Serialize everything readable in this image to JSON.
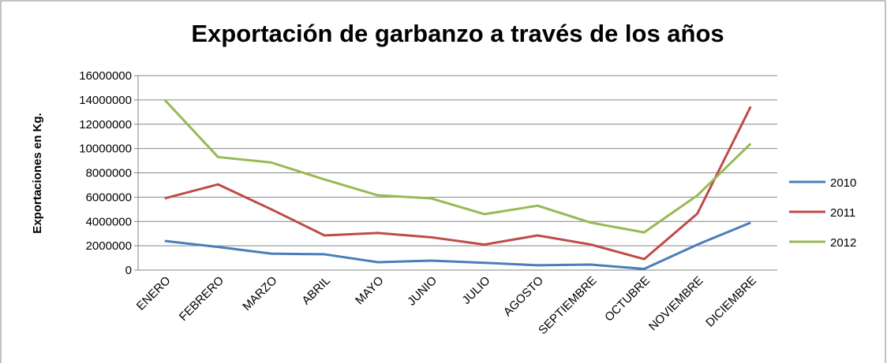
{
  "chart_data": {
    "type": "line",
    "title": "Exportación de garbanzo a través de los años",
    "y_label": "Exportaciones en Kg.",
    "categories": [
      "ENERO",
      "FEBRERO",
      "MARZO",
      "ABRIL",
      "MAYO",
      "JUNIO",
      "JULIO",
      "AGOSTO",
      "SEPTIEMBRE",
      "OCTUBRE",
      "NOVIEMBRE",
      "DICIEMBRE"
    ],
    "series": [
      {
        "name": "2010",
        "color": "#4a7ebb",
        "values": [
          2400000,
          1900000,
          1350000,
          1300000,
          650000,
          780000,
          600000,
          400000,
          450000,
          100000,
          2100000,
          3900000
        ]
      },
      {
        "name": "2011",
        "color": "#be4b48",
        "values": [
          5900000,
          7050000,
          5000000,
          2850000,
          3050000,
          2700000,
          2100000,
          2850000,
          2100000,
          900000,
          4650000,
          13450000
        ]
      },
      {
        "name": "2012",
        "color": "#98b954",
        "values": [
          14000000,
          9300000,
          8850000,
          7450000,
          6150000,
          5900000,
          4600000,
          5300000,
          3900000,
          3100000,
          6150000,
          10400000
        ]
      }
    ],
    "ylim": [
      0,
      16000000
    ],
    "yticks": [
      0,
      2000000,
      4000000,
      6000000,
      8000000,
      10000000,
      12000000,
      14000000,
      16000000
    ],
    "grid": true,
    "legend": "right"
  }
}
